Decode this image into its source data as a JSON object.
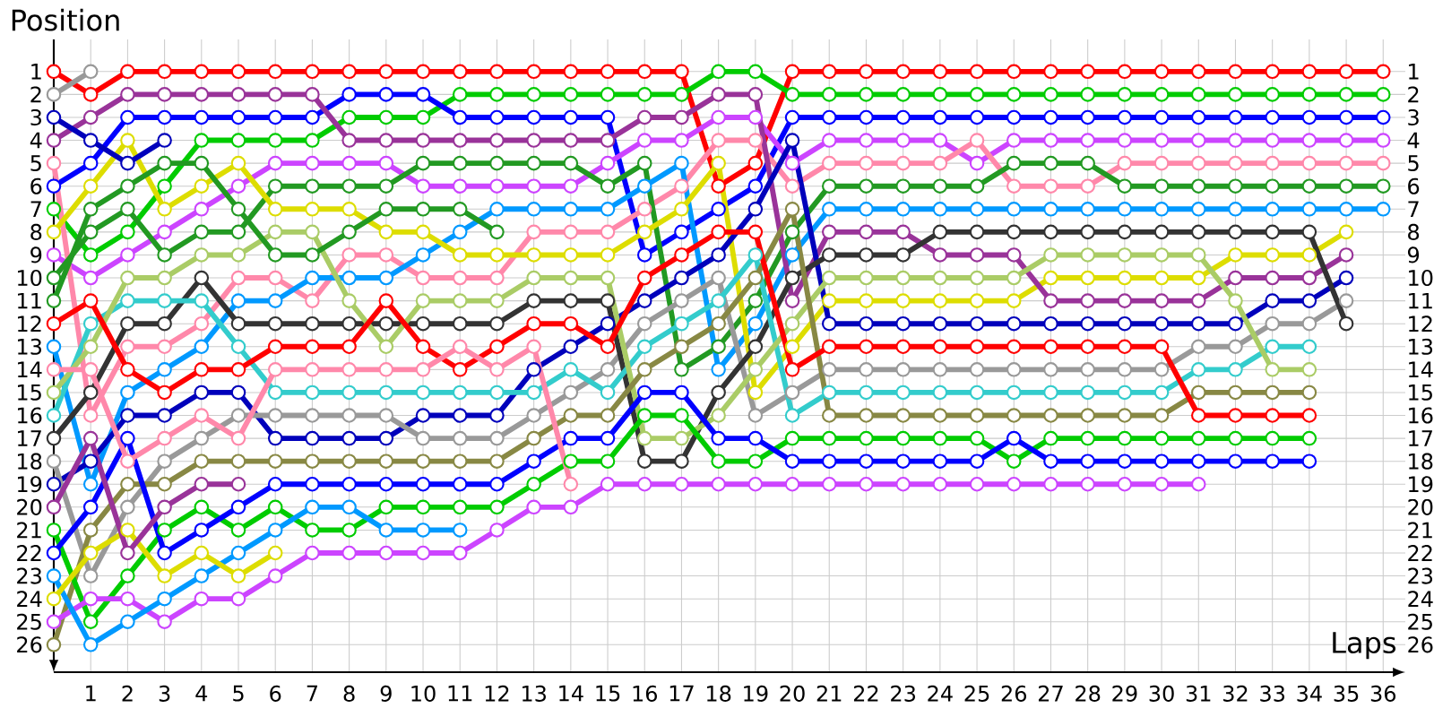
{
  "chart_data": {
    "type": "line",
    "xlabel": "Laps",
    "ylabel": "Position",
    "x": [
      0,
      1,
      2,
      3,
      4,
      5,
      6,
      7,
      8,
      9,
      10,
      11,
      12,
      13,
      14,
      15,
      16,
      17,
      18,
      19,
      20,
      21,
      22,
      23,
      24,
      25,
      26,
      27,
      28,
      29,
      30,
      31,
      32,
      33,
      34,
      35,
      36
    ],
    "xlim": [
      0,
      36.6
    ],
    "xticks": [
      1,
      2,
      3,
      4,
      5,
      6,
      7,
      8,
      9,
      10,
      11,
      12,
      13,
      14,
      15,
      16,
      17,
      18,
      19,
      20,
      21,
      22,
      23,
      24,
      25,
      26,
      27,
      28,
      29,
      30,
      31,
      32,
      33,
      34,
      35,
      36
    ],
    "ylim": [
      27.2,
      -0.4
    ],
    "yticks": [
      1,
      2,
      3,
      4,
      5,
      6,
      7,
      8,
      9,
      10,
      11,
      12,
      13,
      14,
      15,
      16,
      17,
      18,
      19,
      20,
      21,
      22,
      23,
      24,
      25,
      26
    ],
    "y2lim": [
      27.2,
      -0.4
    ],
    "y2ticks": [
      1,
      2,
      3,
      4,
      5,
      6,
      7,
      8,
      9,
      10,
      11,
      12,
      13,
      14,
      15,
      16,
      17,
      18,
      19,
      20,
      21,
      22,
      23,
      24,
      25,
      26
    ],
    "grid": true,
    "marker": "circle",
    "line_style": "solid",
    "series": [
      {
        "color": "#ff0000",
        "values": [
          1,
          2,
          1,
          1,
          1,
          1,
          1,
          1,
          1,
          1,
          1,
          1,
          1,
          1,
          1,
          1,
          1,
          1,
          6,
          5,
          1,
          1,
          1,
          1,
          1,
          1,
          1,
          1,
          1,
          1,
          1,
          1,
          1,
          1,
          1,
          1,
          1
        ]
      },
      {
        "color": "#00cc00",
        "values": [
          7,
          9,
          8,
          6,
          4,
          4,
          4,
          4,
          3,
          3,
          3,
          2,
          2,
          2,
          2,
          2,
          2,
          2,
          1,
          1,
          2,
          2,
          2,
          2,
          2,
          2,
          2,
          2,
          2,
          2,
          2,
          2,
          2,
          2,
          2,
          2,
          2
        ]
      },
      {
        "color": "#0000ff",
        "values": [
          6,
          5,
          3,
          3,
          3,
          3,
          3,
          3,
          2,
          2,
          2,
          3,
          3,
          3,
          3,
          3,
          9,
          8,
          7,
          6,
          3,
          3,
          3,
          3,
          3,
          3,
          3,
          3,
          3,
          3,
          3,
          3,
          3,
          3,
          3,
          3,
          3
        ]
      },
      {
        "color": "#cc44ff",
        "values": [
          9,
          10,
          9,
          8,
          7,
          6,
          5,
          5,
          5,
          5,
          6,
          6,
          6,
          6,
          6,
          5,
          4,
          4,
          3,
          3,
          5,
          4,
          4,
          4,
          4,
          5,
          4,
          4,
          4,
          4,
          4,
          4,
          4,
          4,
          4,
          4,
          4
        ]
      },
      {
        "color": "#ff88aa",
        "values": [
          5,
          16,
          13,
          13,
          12,
          10,
          10,
          11,
          9,
          9,
          10,
          10,
          10,
          8,
          8,
          8,
          7,
          6,
          4,
          4,
          6,
          5,
          5,
          5,
          5,
          4,
          6,
          6,
          6,
          5,
          5,
          5,
          5,
          5,
          5,
          5,
          5
        ]
      },
      {
        "color": "#229922",
        "values": [
          10,
          8,
          7,
          9,
          8,
          8,
          6,
          6,
          6,
          6,
          5,
          5,
          5,
          5,
          5,
          6,
          5,
          14,
          13,
          11,
          8,
          6,
          6,
          6,
          6,
          6,
          5,
          5,
          5,
          6,
          6,
          6,
          6,
          6,
          6,
          6,
          6
        ]
      },
      {
        "color": "#0099ff",
        "values": [
          13,
          19,
          15,
          14,
          13,
          11,
          11,
          10,
          10,
          10,
          9,
          8,
          7,
          7,
          7,
          7,
          6,
          5,
          14,
          12,
          9,
          7,
          7,
          7,
          7,
          7,
          7,
          7,
          7,
          7,
          7,
          7,
          7,
          7,
          7,
          7,
          7
        ]
      },
      {
        "color": "#dddd00",
        "values": [
          8,
          6,
          4,
          7,
          6,
          5,
          7,
          7,
          7,
          8,
          8,
          9,
          9,
          9,
          9,
          9,
          8,
          7,
          5,
          15,
          13,
          11,
          11,
          11,
          11,
          11,
          11,
          10,
          10,
          10,
          10,
          10,
          9,
          9,
          9,
          8,
          null
        ]
      },
      {
        "color": "#993399",
        "values": [
          4,
          3,
          2,
          2,
          2,
          2,
          2,
          2,
          4,
          4,
          4,
          4,
          4,
          4,
          4,
          4,
          3,
          3,
          2,
          2,
          11,
          8,
          8,
          8,
          9,
          9,
          9,
          11,
          11,
          11,
          11,
          11,
          10,
          10,
          10,
          9,
          null
        ]
      },
      {
        "color": "#0000bb",
        "values": [
          19,
          18,
          16,
          16,
          15,
          15,
          17,
          17,
          17,
          17,
          16,
          16,
          16,
          14,
          13,
          12,
          11,
          10,
          9,
          7,
          4,
          12,
          12,
          12,
          12,
          12,
          12,
          12,
          12,
          12,
          12,
          12,
          12,
          11,
          11,
          10,
          null
        ]
      },
      {
        "color": "#999999",
        "values": [
          18,
          23,
          20,
          18,
          17,
          16,
          16,
          16,
          16,
          16,
          17,
          17,
          17,
          16,
          15,
          14,
          12,
          11,
          10,
          16,
          15,
          14,
          14,
          14,
          14,
          14,
          14,
          14,
          14,
          14,
          14,
          13,
          13,
          12,
          12,
          11,
          null
        ]
      },
      {
        "color": "#333333",
        "values": [
          17,
          15,
          12,
          12,
          10,
          12,
          12,
          12,
          12,
          12,
          12,
          12,
          12,
          11,
          11,
          11,
          18,
          18,
          15,
          13,
          10,
          9,
          9,
          9,
          8,
          8,
          8,
          8,
          8,
          8,
          8,
          8,
          8,
          8,
          8,
          12,
          null
        ]
      },
      {
        "color": "#33cccc",
        "values": [
          16,
          12,
          11,
          11,
          11,
          13,
          15,
          15,
          15,
          15,
          15,
          15,
          15,
          15,
          14,
          15,
          13,
          12,
          11,
          9,
          16,
          15,
          15,
          15,
          15,
          15,
          15,
          15,
          15,
          15,
          15,
          14,
          14,
          13,
          13,
          null,
          null
        ]
      },
      {
        "color": "#aacc66",
        "values": [
          15,
          13,
          10,
          10,
          9,
          9,
          8,
          8,
          11,
          13,
          11,
          11,
          11,
          10,
          10,
          10,
          17,
          17,
          16,
          14,
          12,
          10,
          10,
          10,
          10,
          10,
          10,
          9,
          9,
          9,
          9,
          9,
          11,
          14,
          14,
          null,
          null
        ]
      },
      {
        "color": "#888844",
        "values": [
          26,
          21,
          19,
          19,
          18,
          18,
          18,
          18,
          18,
          18,
          18,
          18,
          18,
          17,
          16,
          16,
          14,
          13,
          12,
          10,
          7,
          16,
          16,
          16,
          16,
          16,
          16,
          16,
          16,
          16,
          16,
          15,
          15,
          15,
          15,
          null,
          null
        ]
      },
      {
        "color": "#ff0000",
        "values": [
          12,
          11,
          14,
          15,
          14,
          14,
          13,
          13,
          13,
          11,
          13,
          14,
          13,
          12,
          12,
          13,
          10,
          9,
          8,
          8,
          14,
          13,
          13,
          13,
          13,
          13,
          13,
          13,
          13,
          13,
          13,
          16,
          16,
          16,
          16,
          null,
          null
        ]
      },
      {
        "color": "#00cc00",
        "values": [
          21,
          25,
          23,
          21,
          20,
          21,
          20,
          21,
          21,
          20,
          20,
          20,
          20,
          19,
          18,
          18,
          16,
          16,
          18,
          18,
          17,
          17,
          17,
          17,
          17,
          17,
          18,
          17,
          17,
          17,
          17,
          17,
          17,
          17,
          17,
          null,
          null
        ]
      },
      {
        "color": "#0000ff",
        "values": [
          22,
          20,
          17,
          22,
          21,
          20,
          19,
          19,
          19,
          19,
          19,
          19,
          19,
          18,
          17,
          17,
          15,
          15,
          17,
          17,
          18,
          18,
          18,
          18,
          18,
          18,
          17,
          18,
          18,
          18,
          18,
          18,
          18,
          18,
          18,
          null,
          null
        ]
      },
      {
        "color": "#cc44ff",
        "values": [
          25,
          24,
          24,
          25,
          24,
          24,
          23,
          22,
          22,
          22,
          22,
          22,
          21,
          20,
          20,
          19,
          19,
          19,
          19,
          19,
          19,
          19,
          19,
          19,
          19,
          19,
          19,
          19,
          19,
          19,
          19,
          19,
          null,
          null,
          null,
          null,
          null
        ]
      },
      {
        "color": "#999999",
        "values": [
          2,
          1,
          null,
          null,
          null,
          null,
          null,
          null,
          null,
          null,
          null,
          null,
          null,
          null,
          null,
          null,
          null,
          null,
          null,
          null,
          null,
          null,
          null,
          null,
          null,
          null,
          null,
          null,
          null,
          null,
          null,
          null,
          null,
          null,
          null,
          null,
          null
        ]
      },
      {
        "color": "#0000bb",
        "values": [
          3,
          4,
          5,
          4,
          null,
          null,
          null,
          null,
          null,
          null,
          null,
          null,
          null,
          null,
          null,
          null,
          null,
          null,
          null,
          null,
          null,
          null,
          null,
          null,
          null,
          null,
          null,
          null,
          null,
          null,
          null,
          null,
          null,
          null,
          null,
          null,
          null
        ]
      },
      {
        "color": "#ff88aa",
        "values": [
          14,
          14,
          18,
          17,
          16,
          17,
          14,
          14,
          14,
          14,
          14,
          13,
          14,
          13,
          19,
          null,
          null,
          null,
          null,
          null,
          null,
          null,
          null,
          null,
          null,
          null,
          null,
          null,
          null,
          null,
          null,
          null,
          null,
          null,
          null,
          null,
          null
        ]
      },
      {
        "color": "#0099ff",
        "values": [
          23,
          26,
          25,
          24,
          23,
          22,
          21,
          20,
          20,
          21,
          21,
          21,
          null,
          null,
          null,
          null,
          null,
          null,
          null,
          null,
          null,
          null,
          null,
          null,
          null,
          null,
          null,
          null,
          null,
          null,
          null,
          null,
          null,
          null,
          null,
          null,
          null
        ]
      },
      {
        "color": "#dddd00",
        "values": [
          24,
          22,
          21,
          23,
          22,
          23,
          22,
          null,
          null,
          null,
          null,
          null,
          null,
          null,
          null,
          null,
          null,
          null,
          null,
          null,
          null,
          null,
          null,
          null,
          null,
          null,
          null,
          null,
          null,
          null,
          null,
          null,
          null,
          null,
          null,
          null,
          null
        ]
      },
      {
        "color": "#993399",
        "values": [
          20,
          17,
          22,
          20,
          19,
          19,
          null,
          null,
          null,
          null,
          null,
          null,
          null,
          null,
          null,
          null,
          null,
          null,
          null,
          null,
          null,
          null,
          null,
          null,
          null,
          null,
          null,
          null,
          null,
          null,
          null,
          null,
          null,
          null,
          null,
          null,
          null
        ]
      },
      {
        "color": "#229922",
        "values": [
          11,
          7,
          6,
          5,
          5,
          7,
          9,
          9,
          8,
          7,
          7,
          7,
          8,
          null,
          null,
          null,
          null,
          null,
          null,
          null,
          null,
          null,
          null,
          null,
          null,
          null,
          null,
          null,
          null,
          null,
          null,
          null,
          null,
          null,
          null,
          null,
          null
        ]
      }
    ]
  }
}
